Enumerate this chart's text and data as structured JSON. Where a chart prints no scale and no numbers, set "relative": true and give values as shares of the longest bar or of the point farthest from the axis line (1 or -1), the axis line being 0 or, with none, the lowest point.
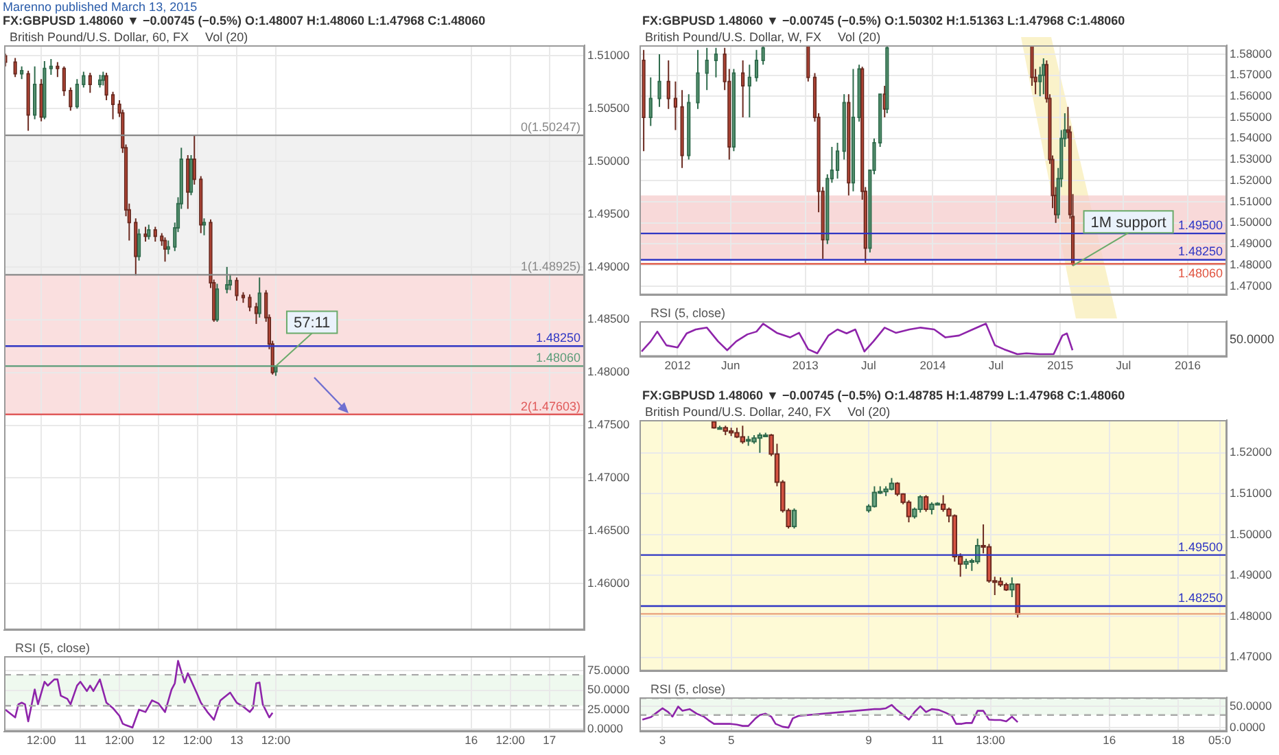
{
  "chart_data": [
    {
      "type": "candlestick",
      "subtitle": "Marenno published March 13, 2015",
      "title": "FX:GBPUSD 1.48060 ▼ −0.00745 (−0.5%) O:1.48007 H:1.48060 L:1.47968 C:1.48060",
      "annotations": [
        "British Pound/U.S. Dollar, 60, FX",
        "Vol (20)",
        {
          "text": "57:11",
          "x": "2015-03-13T12:00",
          "y": 1.4806
        }
      ],
      "x": [
        "2015-03-10T01:00",
        "2015-03-10T04:00",
        "2015-03-10T06:00",
        "2015-03-10T08:00",
        "2015-03-10T10:00",
        "2015-03-10T12:00",
        "2015-03-10T13:00",
        "2015-03-10T15:00",
        "2015-03-10T17:00",
        "2015-03-10T19:00",
        "2015-03-10T21:00",
        "2015-03-10T23:00",
        "2015-03-11T01:00",
        "2015-03-11T03:00",
        "2015-03-11T06:00",
        "2015-03-11T07:00",
        "2015-03-11T08:00",
        "2015-03-11T10:00",
        "2015-03-11T12:00",
        "2015-03-11T13:00",
        "2015-03-11T14:00",
        "2015-03-11T15:00",
        "2015-03-11T17:00",
        "2015-03-11T18:00",
        "2015-03-11T20:00",
        "2015-03-11T21:00",
        "2015-03-11T23:00",
        "2015-03-12T01:00",
        "2015-03-12T02:00",
        "2015-03-12T03:00",
        "2015-03-12T05:00",
        "2015-03-12T06:00",
        "2015-03-12T07:00",
        "2015-03-12T09:00",
        "2015-03-12T10:00",
        "2015-03-12T11:00",
        "2015-03-12T13:00",
        "2015-03-12T14:00",
        "2015-03-12T16:00",
        "2015-03-12T17:00",
        "2015-03-12T18:00",
        "2015-03-12T21:00",
        "2015-03-12T22:00",
        "2015-03-13T00:00",
        "2015-03-13T02:00",
        "2015-03-13T04:00",
        "2015-03-13T06:00",
        "2015-03-13T07:00",
        "2015-03-13T09:00",
        "2015-03-13T10:00",
        "2015-03-13T11:00",
        "2015-03-13T12:00"
      ],
      "ohlc": [
        [
          1.51,
          1.5102,
          1.509,
          1.5094
        ],
        [
          1.5094,
          1.5098,
          1.508,
          1.5083
        ],
        [
          1.5083,
          1.509,
          1.5078,
          1.5086
        ],
        [
          1.5083,
          1.5086,
          1.5029,
          1.5044
        ],
        [
          1.5044,
          1.509,
          1.504,
          1.5073
        ],
        [
          1.5073,
          1.5078,
          1.5038,
          1.5042
        ],
        [
          1.5042,
          1.5095,
          1.504,
          1.5088
        ],
        [
          1.5088,
          1.5097,
          1.5082,
          1.509
        ],
        [
          1.509,
          1.5094,
          1.508,
          1.5088
        ],
        [
          1.5088,
          1.509,
          1.5062,
          1.5067
        ],
        [
          1.5067,
          1.507,
          1.5048,
          1.5052
        ],
        [
          1.5052,
          1.5078,
          1.505,
          1.5073
        ],
        [
          1.5073,
          1.5085,
          1.507,
          1.5081
        ],
        [
          1.5081,
          1.5084,
          1.5065,
          1.5073
        ],
        [
          1.5073,
          1.5082,
          1.507,
          1.5077
        ],
        [
          1.5077,
          1.5085,
          1.5072,
          1.5081
        ],
        [
          1.5081,
          1.5084,
          1.5058,
          1.5063
        ],
        [
          1.5063,
          1.5066,
          1.504,
          1.5054
        ],
        [
          1.5054,
          1.5058,
          1.5042,
          1.5046
        ],
        [
          1.5046,
          1.5049,
          1.5008,
          1.5013
        ],
        [
          1.5013,
          1.5016,
          1.4948,
          1.4954
        ],
        [
          1.4954,
          1.496,
          1.4925,
          1.4942
        ],
        [
          1.4942,
          1.4946,
          1.4892,
          1.491
        ],
        [
          1.491,
          1.4936,
          1.4906,
          1.4931
        ],
        [
          1.4931,
          1.4938,
          1.4924,
          1.4929
        ],
        [
          1.4929,
          1.494,
          1.4926,
          1.4935
        ],
        [
          1.4935,
          1.4938,
          1.4924,
          1.4929
        ],
        [
          1.4929,
          1.4932,
          1.492,
          1.4925
        ],
        [
          1.4925,
          1.4928,
          1.4905,
          1.4917
        ],
        [
          1.4917,
          1.4925,
          1.4912,
          1.4919
        ],
        [
          1.4919,
          1.4942,
          1.4915,
          1.4937
        ],
        [
          1.4937,
          1.4966,
          1.4933,
          1.496
        ],
        [
          1.496,
          1.5013,
          1.4955,
          1.5002
        ],
        [
          1.5002,
          1.5006,
          1.4955,
          1.4971
        ],
        [
          1.4971,
          1.5006,
          1.4968,
          1.5002
        ],
        [
          1.5002,
          1.5025,
          1.4978,
          1.4983
        ],
        [
          1.4983,
          1.4986,
          1.4932,
          1.494
        ],
        [
          1.494,
          1.4946,
          1.493,
          1.4942
        ],
        [
          1.4942,
          1.4945,
          1.488,
          1.4885
        ],
        [
          1.4885,
          1.4888,
          1.4848,
          1.485
        ],
        [
          1.485,
          1.4884,
          1.4848,
          1.4879
        ],
        [
          1.4879,
          1.49,
          1.4875,
          1.4883
        ],
        [
          1.4883,
          1.4893,
          1.4878,
          1.4887
        ],
        [
          1.4887,
          1.489,
          1.4868,
          1.4873
        ],
        [
          1.4873,
          1.4876,
          1.4866,
          1.4871
        ],
        [
          1.4871,
          1.4874,
          1.4858,
          1.4862
        ],
        [
          1.4862,
          1.4866,
          1.4846,
          1.4856
        ],
        [
          1.4856,
          1.489,
          1.4852,
          1.4875
        ],
        [
          1.4875,
          1.4878,
          1.4848,
          1.4852
        ],
        [
          1.4852,
          1.4855,
          1.4822,
          1.4827
        ],
        [
          1.4827,
          1.483,
          1.4798,
          1.48
        ],
        [
          1.48007,
          1.4806,
          1.47968,
          1.4806
        ]
      ],
      "xlim": [
        "2015-03-10T00:36",
        "2015-03-17T10:48"
      ],
      "xticks": [
        {
          "value": "2015-03-10T12:00",
          "label": null
        },
        {
          "value": "2015-03-11",
          "label": null
        },
        {
          "value": "2015-03-11T12:00",
          "label": null
        },
        {
          "value": "2015-03-12",
          "label": null
        },
        {
          "value": "2015-03-12T12:00",
          "label": null
        },
        {
          "value": "2015-03-13",
          "label": null
        },
        {
          "value": "2015-03-13T12:00",
          "label": null
        },
        {
          "value": "2015-03-16",
          "label": null
        },
        {
          "value": "2015-03-16T12:00",
          "label": null
        },
        {
          "value": "2015-03-17",
          "label": null
        }
      ],
      "ylim": [
        1.4556,
        1.511
      ],
      "yticks": [
        {
          "value": 1.46,
          "label": "1.46000"
        },
        {
          "value": 1.465,
          "label": "1.46500"
        },
        {
          "value": 1.47,
          "label": "1.47000"
        },
        {
          "value": 1.475,
          "label": "1.47500"
        },
        {
          "value": 1.48,
          "label": "1.48000"
        },
        {
          "value": 1.485,
          "label": "1.48500"
        },
        {
          "value": 1.49,
          "label": "1.49000"
        },
        {
          "value": 1.495,
          "label": "1.49500"
        },
        {
          "value": 1.5,
          "label": "1.50000"
        },
        {
          "value": 1.505,
          "label": "1.50500"
        },
        {
          "value": 1.51,
          "label": "1.51000"
        }
      ],
      "ref_lines": [
        {
          "axis": "y",
          "value": 1.50247,
          "label": "0(1.50247)",
          "color": "#888888"
        },
        {
          "axis": "y",
          "value": 1.48925,
          "label": "1(1.48925)",
          "color": "#888888"
        },
        {
          "axis": "y",
          "value": 1.47603,
          "label": "2(1.47603)",
          "color": "#e05a5a"
        },
        {
          "axis": "y",
          "value": 1.4825,
          "label": "1.48250",
          "color": "#2f36c4"
        },
        {
          "axis": "y",
          "value": 1.4806,
          "label": "1.48060",
          "color": "#5a9c78"
        }
      ],
      "bands": [
        {
          "axis": "y",
          "from": 1.48925,
          "to": 1.50247,
          "color": "#ececec"
        },
        {
          "axis": "y",
          "from": 1.47603,
          "to": 1.48925,
          "color": "#f8d4d4"
        }
      ],
      "grid": true,
      "tick_labels": "y"
    },
    {
      "type": "line",
      "title": "RSI (5, close)",
      "series": [
        {
          "color": "#8e24aa",
          "x": [
            "2015-03-10T01:00",
            "2015-03-10T04:00",
            "2015-03-10T05:00",
            "2015-03-10T06:00",
            "2015-03-10T07:00",
            "2015-03-10T08:00",
            "2015-03-10T10:00",
            "2015-03-10T11:00",
            "2015-03-10T13:00",
            "2015-03-10T14:00",
            "2015-03-10T16:00",
            "2015-03-10T17:00",
            "2015-03-10T18:00",
            "2015-03-10T20:00",
            "2015-03-10T21:00",
            "2015-03-10T23:00",
            "2015-03-11T00:00",
            "2015-03-11T02:00",
            "2015-03-11T03:00",
            "2015-03-11T04:00",
            "2015-03-11T06:00",
            "2015-03-11T08:00",
            "2015-03-11T10:00",
            "2015-03-11T12:00",
            "2015-03-11T13:00",
            "2015-03-11T14:00",
            "2015-03-11T16:00",
            "2015-03-11T18:00",
            "2015-03-11T20:00",
            "2015-03-11T22:00",
            "2015-03-12T00:00",
            "2015-03-12T02:00",
            "2015-03-12T04:00",
            "2015-03-12T05:00",
            "2015-03-12T06:00",
            "2015-03-12T08:00",
            "2015-03-12T09:00",
            "2015-03-12T12:00",
            "2015-03-12T13:00",
            "2015-03-12T15:00",
            "2015-03-12T17:00",
            "2015-03-12T19:00",
            "2015-03-12T22:00",
            "2015-03-13T00:00",
            "2015-03-13T02:00",
            "2015-03-13T04:00",
            "2015-03-13T05:00",
            "2015-03-13T06:00",
            "2015-03-13T07:00",
            "2015-03-13T08:00",
            "2015-03-13T10:00",
            "2015-03-13T11:00"
          ],
          "values": [
            25,
            15,
            32,
            34,
            32,
            10,
            51,
            32,
            61,
            56,
            64,
            64,
            43,
            39,
            32,
            56,
            61,
            49,
            56,
            49,
            64,
            34,
            27,
            17,
            7,
            5,
            2,
            25,
            22,
            37,
            33,
            22,
            51,
            59,
            88,
            60,
            72,
            44,
            34,
            22,
            12,
            37,
            47,
            34,
            29,
            22,
            27,
            59,
            60,
            32,
            15,
            21
          ]
        }
      ],
      "xlim": [
        "2015-03-10T00:36",
        "2015-03-17T10:48"
      ],
      "xticks": [
        {
          "value": "2015-03-10T12:00",
          "label": "12:00"
        },
        {
          "value": "2015-03-11",
          "label": "11"
        },
        {
          "value": "2015-03-11T12:00",
          "label": "12:00"
        },
        {
          "value": "2015-03-12",
          "label": "12"
        },
        {
          "value": "2015-03-12T12:00",
          "label": "12:00"
        },
        {
          "value": "2015-03-13",
          "label": "13"
        },
        {
          "value": "2015-03-13T12:00",
          "label": "12:00"
        },
        {
          "value": "2015-03-16",
          "label": "16"
        },
        {
          "value": "2015-03-16T12:00",
          "label": "12:00"
        },
        {
          "value": "2015-03-17",
          "label": "17"
        }
      ],
      "ylim": [
        -3,
        94
      ],
      "yticks": [
        {
          "value": 0,
          "label": "0.0000"
        },
        {
          "value": 25,
          "label": "25.0000"
        },
        {
          "value": 50,
          "label": "50.0000"
        },
        {
          "value": 75,
          "label": "75.0000"
        }
      ],
      "ref_lines": [
        {
          "axis": "y",
          "value": 70,
          "color": "#aaaaaa",
          "line_style": "dashed"
        },
        {
          "axis": "y",
          "value": 30,
          "color": "#aaaaaa",
          "line_style": "dashed"
        }
      ],
      "bands": [
        {
          "axis": "y",
          "from": 30,
          "to": 70,
          "color": "#eaf7ea"
        }
      ],
      "grid": true,
      "marker": "none",
      "line_style": "solid"
    },
    {
      "type": "candlestick",
      "title": "FX:GBPUSD 1.48060 ▼ −0.00745 (−0.5%) O:1.50302 H:1.51363 L:1.47968 C:1.48060",
      "annotations": [
        "British Pound/U.S. Dollar, W, FX",
        "Vol (20)",
        {
          "text": "1M support",
          "x": "2015-02-06",
          "y": 1.47968
        }
      ],
      "x": [
        "2011-09-26",
        "2011-10-16",
        "2011-11-10",
        "2011-12-06",
        "2011-12-26",
        "2012-01-14",
        "2012-02-02",
        "2012-02-28",
        "2012-03-25",
        "2012-04-20",
        "2012-05-15",
        "2012-05-28",
        "2012-06-10",
        "2012-07-06",
        "2012-07-25",
        "2012-08-14",
        "2012-09-02",
        "2013-01-09",
        "2013-01-28",
        "2013-02-08",
        "2013-02-20",
        "2013-03-05",
        "2013-03-18",
        "2013-04-03",
        "2013-04-22",
        "2013-05-05",
        "2013-05-18",
        "2013-06-04",
        "2013-06-13",
        "2013-06-22",
        "2013-07-05",
        "2013-07-17",
        "2013-08-03",
        "2013-08-16",
        "2013-08-23",
        "2014-10-12",
        "2014-10-22",
        "2014-11-04",
        "2014-11-14",
        "2014-11-23",
        "2014-12-02",
        "2014-12-10",
        "2014-12-19",
        "2014-12-26",
        "2015-01-04",
        "2015-01-14",
        "2015-01-23",
        "2015-01-29",
        "2015-02-06"
      ],
      "ohlc": [
        [
          1.577,
          1.582,
          1.534,
          1.55
        ],
        [
          1.55,
          1.569,
          1.546,
          1.559
        ],
        [
          1.559,
          1.58,
          1.555,
          1.567
        ],
        [
          1.567,
          1.577,
          1.554,
          1.559
        ],
        [
          1.559,
          1.567,
          1.544,
          1.555
        ],
        [
          1.555,
          1.563,
          1.526,
          1.532
        ],
        [
          1.532,
          1.561,
          1.53,
          1.557
        ],
        [
          1.557,
          1.582,
          1.554,
          1.571
        ],
        [
          1.571,
          1.583,
          1.563,
          1.577
        ],
        [
          1.577,
          1.583,
          1.569,
          1.58
        ],
        [
          1.58,
          1.583,
          1.563,
          1.567
        ],
        [
          1.567,
          1.573,
          1.53,
          1.536
        ],
        [
          1.536,
          1.573,
          1.534,
          1.571
        ],
        [
          1.571,
          1.577,
          1.55,
          1.565
        ],
        [
          1.565,
          1.575,
          1.55,
          1.569
        ],
        [
          1.569,
          1.582,
          1.567,
          1.577
        ],
        [
          1.577,
          1.584,
          1.575,
          1.583
        ],
        [
          1.584,
          1.584,
          1.567,
          1.569
        ],
        [
          1.569,
          1.571,
          1.548,
          1.55
        ],
        [
          1.55,
          1.552,
          1.505,
          1.515
        ],
        [
          1.515,
          1.517,
          1.483,
          1.492
        ],
        [
          1.492,
          1.523,
          1.49,
          1.521
        ],
        [
          1.521,
          1.536,
          1.519,
          1.525
        ],
        [
          1.525,
          1.538,
          1.521,
          1.534
        ],
        [
          1.534,
          1.561,
          1.53,
          1.557
        ],
        [
          1.557,
          1.561,
          1.513,
          1.519
        ],
        [
          1.519,
          1.573,
          1.515,
          1.55
        ],
        [
          1.55,
          1.575,
          1.548,
          1.573
        ],
        [
          1.573,
          1.574,
          1.511,
          1.515
        ],
        [
          1.515,
          1.517,
          1.481,
          1.488
        ],
        [
          1.488,
          1.525,
          1.486,
          1.525
        ],
        [
          1.525,
          1.54,
          1.523,
          1.538
        ],
        [
          1.538,
          1.561,
          1.536,
          1.561
        ],
        [
          1.561,
          1.565,
          1.55,
          1.554
        ],
        [
          1.554,
          1.584,
          1.552,
          1.583
        ],
        [
          1.584,
          1.584,
          1.565,
          1.569
        ],
        [
          1.569,
          1.573,
          1.561,
          1.567
        ],
        [
          1.567,
          1.574,
          1.56,
          1.57
        ],
        [
          1.57,
          1.578,
          1.561,
          1.575
        ],
        [
          1.575,
          1.577,
          1.557,
          1.559
        ],
        [
          1.559,
          1.561,
          1.528,
          1.53
        ],
        [
          1.53,
          1.532,
          1.507,
          1.513
        ],
        [
          1.513,
          1.517,
          1.5,
          1.504
        ],
        [
          1.504,
          1.526,
          1.502,
          1.521
        ],
        [
          1.521,
          1.544,
          1.517,
          1.54
        ],
        [
          1.54,
          1.552,
          1.536,
          1.544
        ],
        [
          1.544,
          1.555,
          1.54,
          1.543
        ],
        [
          1.543,
          1.546,
          1.502,
          1.504
        ],
        [
          1.50302,
          1.51363,
          1.47968,
          1.4806
        ]
      ],
      "xlim": [
        "2011-09-14",
        "2016-04-22"
      ],
      "xticks": [
        {
          "value": "2012-01-01",
          "label": null
        },
        {
          "value": "2012-06-01",
          "label": null
        },
        {
          "value": "2013-01-01",
          "label": null
        },
        {
          "value": "2013-07-01",
          "label": null
        },
        {
          "value": "2014-01-01",
          "label": null
        },
        {
          "value": "2014-07-01",
          "label": null
        },
        {
          "value": "2015-01-01",
          "label": null
        },
        {
          "value": "2015-07-01",
          "label": null
        },
        {
          "value": "2016-01-01",
          "label": null
        }
      ],
      "ylim": [
        1.4658,
        1.5842
      ],
      "yticks": [
        {
          "value": 1.47,
          "label": "1.47000"
        },
        {
          "value": 1.48,
          "label": "1.48000"
        },
        {
          "value": 1.49,
          "label": "1.49000"
        },
        {
          "value": 1.5,
          "label": "1.50000"
        },
        {
          "value": 1.51,
          "label": "1.51000"
        },
        {
          "value": 1.52,
          "label": "1.52000"
        },
        {
          "value": 1.53,
          "label": "1.53000"
        },
        {
          "value": 1.54,
          "label": "1.54000"
        },
        {
          "value": 1.55,
          "label": "1.55000"
        },
        {
          "value": 1.56,
          "label": "1.56000"
        },
        {
          "value": 1.57,
          "label": "1.57000"
        },
        {
          "value": 1.58,
          "label": "1.58000"
        }
      ],
      "ref_lines": [
        {
          "axis": "y",
          "value": 1.495,
          "label": "1.49500",
          "color": "#2f36c4"
        },
        {
          "axis": "y",
          "value": 1.4825,
          "label": "1.48250",
          "color": "#2f36c4"
        },
        {
          "axis": "y",
          "value": 1.4806,
          "label": "1.48060",
          "color": "#e0533f"
        }
      ],
      "bands": [
        {
          "axis": "y",
          "from": 1.4825,
          "to": 1.513,
          "color": "#f6cccc"
        }
      ],
      "grid": true,
      "tick_labels": "y"
    },
    {
      "type": "line",
      "title": "RSI (5, close)",
      "annotations": [
        "50.0000"
      ],
      "relative": true,
      "series": [
        {
          "color": "#8e24aa",
          "x": [
            "2011-09-20",
            "2011-10-16",
            "2011-11-04",
            "2011-11-30",
            "2012-01-01",
            "2012-01-27",
            "2012-02-22",
            "2012-03-25",
            "2012-04-26",
            "2012-05-22",
            "2012-06-17",
            "2012-07-19",
            "2012-08-14",
            "2012-09-02",
            "2012-10-11",
            "2012-11-18",
            "2012-12-14",
            "2013-01-09",
            "2013-02-04",
            "2013-03-08",
            "2013-04-03",
            "2013-04-29",
            "2013-05-24",
            "2013-06-19",
            "2013-07-15",
            "2013-08-16",
            "2013-09-17",
            "2013-10-26",
            "2013-11-27",
            "2014-01-05",
            "2014-02-06",
            "2014-03-17",
            "2014-04-25",
            "2014-06-02",
            "2014-06-28",
            "2014-07-24",
            "2014-08-31",
            "2014-09-26",
            "2014-11-04",
            "2014-12-13",
            "2015-01-07",
            "2015-01-20",
            "2015-02-05"
          ],
          "values": [
            0.09,
            0.42,
            0.74,
            0.29,
            0.22,
            0.68,
            0.81,
            0.87,
            0.42,
            0.13,
            0.42,
            0.65,
            0.74,
            1,
            0.7,
            0.55,
            0.7,
            0.16,
            0.03,
            0.61,
            0.81,
            0.68,
            0.81,
            0.09,
            0.42,
            0.87,
            0.7,
            0.81,
            0.87,
            0.81,
            0.55,
            0.61,
            0.81,
            1,
            0.29,
            0.16,
            0,
            0.03,
            0,
            0,
            0.61,
            0.68,
            0.13
          ]
        }
      ],
      "xlim": [
        "2011-09-14",
        "2016-04-22"
      ],
      "xticks": [
        {
          "value": "2012-01-01",
          "label": "2012"
        },
        {
          "value": "2012-06-01",
          "label": "Jun"
        },
        {
          "value": "2013-01-01",
          "label": "2013"
        },
        {
          "value": "2013-07-01",
          "label": "Jul"
        },
        {
          "value": "2014-01-01",
          "label": "2014"
        },
        {
          "value": "2014-07-01",
          "label": "Jul"
        },
        {
          "value": "2015-01-01",
          "label": "2015"
        },
        {
          "value": "2015-07-01",
          "label": "Jul"
        },
        {
          "value": "2016-01-01",
          "label": "2016"
        }
      ],
      "grid": true,
      "marker": "none",
      "tick_labels": "x"
    },
    {
      "type": "candlestick",
      "title": "FX:GBPUSD 1.48060 ▼ −0.00745 (−0.5%) O:1.48785 H:1.48799 L:1.47968 C:1.48060",
      "annotations": [
        "British Pound/U.S. Dollar, 240, FX",
        "Vol (20)"
      ],
      "x": [
        "2015-03-04T12:00",
        "2015-03-04T16:00",
        "2015-03-04T20:00",
        "2015-03-05T00:00",
        "2015-03-05T04:00",
        "2015-03-05T08:00",
        "2015-03-05T12:00",
        "2015-03-05T16:00",
        "2015-03-05T20:00",
        "2015-03-06T00:00",
        "2015-03-06T04:00",
        "2015-03-06T08:00",
        "2015-03-06T12:00",
        "2015-03-06T16:00",
        "2015-03-06T20:00",
        "2015-03-09T00:00",
        "2015-03-09T04:00",
        "2015-03-09T08:00",
        "2015-03-09T12:00",
        "2015-03-09T16:00",
        "2015-03-09T20:00",
        "2015-03-10T00:00",
        "2015-03-10T04:00",
        "2015-03-10T08:00",
        "2015-03-10T12:00",
        "2015-03-10T16:00",
        "2015-03-10T20:00",
        "2015-03-11T00:00",
        "2015-03-11T04:00",
        "2015-03-11T08:00",
        "2015-03-11T12:00",
        "2015-03-11T16:00",
        "2015-03-11T20:00",
        "2015-03-12T00:00",
        "2015-03-12T04:00",
        "2015-03-12T08:00",
        "2015-03-12T12:00",
        "2015-03-12T16:00",
        "2015-03-12T20:00",
        "2015-03-13T00:00",
        "2015-03-13T04:00",
        "2015-03-13T08:00"
      ],
      "ohlc": [
        [
          1.5276,
          1.5278,
          1.5259,
          1.5261
        ],
        [
          1.5261,
          1.5266,
          1.5259,
          1.5261
        ],
        [
          1.5261,
          1.5266,
          1.5243,
          1.5253
        ],
        [
          1.5253,
          1.5261,
          1.5241,
          1.5249
        ],
        [
          1.5249,
          1.5261,
          1.5236,
          1.5239
        ],
        [
          1.5239,
          1.5266,
          1.5222,
          1.5227
        ],
        [
          1.5232,
          1.5241,
          1.5217,
          1.5232
        ],
        [
          1.5227,
          1.5243,
          1.5222,
          1.5236
        ],
        [
          1.5236,
          1.5249,
          1.52,
          1.5243
        ],
        [
          1.5243,
          1.5249,
          1.5239,
          1.5243
        ],
        [
          1.5243,
          1.5246,
          1.5192,
          1.5197
        ],
        [
          1.5197,
          1.5222,
          1.5118,
          1.5128
        ],
        [
          1.5128,
          1.5133,
          1.5054,
          1.5059
        ],
        [
          1.5059,
          1.5064,
          1.5015,
          1.502
        ],
        [
          1.502,
          1.5064,
          1.5015,
          1.5059
        ],
        [
          1.5059,
          1.5074,
          1.5054,
          1.5069
        ],
        [
          1.5069,
          1.5118,
          1.5066,
          1.5103
        ],
        [
          1.5103,
          1.5118,
          1.5099,
          1.5105
        ],
        [
          1.5105,
          1.5118,
          1.5094,
          1.5111
        ],
        [
          1.5111,
          1.5138,
          1.5108,
          1.5125
        ],
        [
          1.5125,
          1.5128,
          1.5094,
          1.5099
        ],
        [
          1.5099,
          1.5101,
          1.5074,
          1.5079
        ],
        [
          1.5079,
          1.5084,
          1.503,
          1.5044
        ],
        [
          1.5044,
          1.5066,
          1.5039,
          1.5062
        ],
        [
          1.5062,
          1.5096,
          1.5054,
          1.5092
        ],
        [
          1.5092,
          1.5096,
          1.5056,
          1.5062
        ],
        [
          1.5062,
          1.5079,
          1.5049,
          1.5074
        ],
        [
          1.5074,
          1.5079,
          1.5072,
          1.5076
        ],
        [
          1.5074,
          1.5096,
          1.5056,
          1.5062
        ],
        [
          1.5062,
          1.5066,
          1.503,
          1.5046
        ],
        [
          1.5046,
          1.5049,
          1.4934,
          1.4946
        ],
        [
          1.4946,
          1.4954,
          1.4897,
          1.4928
        ],
        [
          1.4928,
          1.4941,
          1.4916,
          1.4934
        ],
        [
          1.4934,
          1.4941,
          1.4911,
          1.4936
        ],
        [
          1.4934,
          1.499,
          1.4928,
          1.4973
        ],
        [
          1.4973,
          1.5025,
          1.4954,
          1.497
        ],
        [
          1.497,
          1.4977,
          1.4882,
          1.4887
        ],
        [
          1.4887,
          1.4897,
          1.4852,
          1.4885
        ],
        [
          1.4885,
          1.4895,
          1.4872,
          1.4877
        ],
        [
          1.4877,
          1.4882,
          1.4862,
          1.4865
        ],
        [
          1.4865,
          1.4895,
          1.4847,
          1.4879
        ],
        [
          1.48785,
          1.48799,
          1.47968,
          1.4806
        ]
      ],
      "xlim": [
        "2015-03-02T08:00",
        "2015-03-19T10:00"
      ],
      "xticks": [
        {
          "value": "2015-03-03",
          "label": null
        },
        {
          "value": "2015-03-05",
          "label": null
        },
        {
          "value": "2015-03-09",
          "label": null
        },
        {
          "value": "2015-03-11",
          "label": null
        },
        {
          "value": "2015-03-12T13:00",
          "label": null
        },
        {
          "value": "2015-03-16",
          "label": null
        },
        {
          "value": "2015-03-18",
          "label": null
        },
        {
          "value": "2015-03-19T05:00",
          "label": null
        }
      ],
      "ylim": [
        1.4666,
        1.528
      ],
      "yticks": [
        {
          "value": 1.47,
          "label": "1.47000"
        },
        {
          "value": 1.48,
          "label": "1.48000"
        },
        {
          "value": 1.49,
          "label": "1.49000"
        },
        {
          "value": 1.5,
          "label": "1.50000"
        },
        {
          "value": 1.51,
          "label": "1.51000"
        },
        {
          "value": 1.52,
          "label": "1.52000"
        }
      ],
      "ref_lines": [
        {
          "axis": "y",
          "value": 1.495,
          "label": "1.49500",
          "color": "#2f36c4"
        },
        {
          "axis": "y",
          "value": 1.4825,
          "label": "1.48250",
          "color": "#2f36c4"
        },
        {
          "axis": "y",
          "value": 1.4806,
          "color": "#e8a07c"
        }
      ],
      "bands": [
        {
          "axis": "y",
          "from": 1.4666,
          "to": 1.528,
          "color": "#fdf8c8"
        }
      ],
      "grid": true,
      "tick_labels": "y"
    },
    {
      "type": "line",
      "title": "RSI (5, close)",
      "series": [
        {
          "color": "#8e24aa",
          "x": [
            "2015-03-02T10:00",
            "2015-03-02T16:00",
            "2015-03-02T19:00",
            "2015-03-03T00:00",
            "2015-03-03T04:00",
            "2015-03-03T07:00",
            "2015-03-03T11:00",
            "2015-03-03T14:00",
            "2015-03-03T19:00",
            "2015-03-04T00:00",
            "2015-03-04T05:00",
            "2015-03-04T08:00",
            "2015-03-04T12:00",
            "2015-03-04T18:00",
            "2015-03-04T23:00",
            "2015-03-05T04:00",
            "2015-03-05T08:00",
            "2015-03-05T12:00",
            "2015-03-05T17:00",
            "2015-03-05T20:00",
            "2015-03-06T00:00",
            "2015-03-06T04:00",
            "2015-03-06T07:00",
            "2015-03-06T12:00",
            "2015-03-06T16:00",
            "2015-03-06T19:00",
            "2015-03-06T23:00",
            "2015-03-09T04:00",
            "2015-03-09T08:00",
            "2015-03-09T12:00",
            "2015-03-09T16:00",
            "2015-03-09T19:00",
            "2015-03-09T23:00",
            "2015-03-10T04:00",
            "2015-03-10T08:00",
            "2015-03-10T12:00",
            "2015-03-10T16:00",
            "2015-03-10T20:00",
            "2015-03-11T01:00",
            "2015-03-11T06:00",
            "2015-03-11T10:00",
            "2015-03-11T13:00",
            "2015-03-11T17:00",
            "2015-03-11T20:00",
            "2015-03-12T00:00",
            "2015-03-12T04:00",
            "2015-03-12T08:00",
            "2015-03-12T12:00",
            "2015-03-12T16:00",
            "2015-03-12T20:00",
            "2015-03-13T00:00",
            "2015-03-13T04:00",
            "2015-03-13T08:00"
          ],
          "values": [
            19,
            25,
            33,
            46,
            37,
            26,
            50,
            40,
            44,
            33,
            26,
            18,
            9,
            9,
            9,
            7,
            4,
            4,
            22,
            30,
            33,
            26,
            9,
            2,
            0,
            22,
            28,
            44,
            44,
            46,
            54,
            44,
            33,
            19,
            37,
            51,
            37,
            44,
            42,
            35,
            28,
            9,
            9,
            11,
            11,
            40,
            40,
            19,
            18,
            18,
            15,
            26,
            13
          ]
        }
      ],
      "xlim": [
        "2015-03-02T08:00",
        "2015-03-19T10:00"
      ],
      "xticks": [
        {
          "value": "2015-03-03",
          "label": "3"
        },
        {
          "value": "2015-03-05",
          "label": "5"
        },
        {
          "value": "2015-03-09",
          "label": "9"
        },
        {
          "value": "2015-03-11",
          "label": "11"
        },
        {
          "value": "2015-03-12T13:00",
          "label": "13:00"
        },
        {
          "value": "2015-03-16",
          "label": "16"
        },
        {
          "value": "2015-03-18",
          "label": "18"
        },
        {
          "value": "2015-03-19T05:00",
          "label": "05:0"
        }
      ],
      "ylim": [
        -9,
        72
      ],
      "yticks": [
        {
          "value": 0,
          "label": "0.0000"
        },
        {
          "value": 50,
          "label": "50.0000"
        }
      ],
      "ref_lines": [
        {
          "axis": "y",
          "value": 70,
          "color": "#aaaaaa",
          "line_style": "dashed"
        },
        {
          "axis": "y",
          "value": 30,
          "color": "#aaaaaa",
          "line_style": "dashed"
        }
      ],
      "bands": [
        {
          "axis": "y",
          "from": 30,
          "to": 70,
          "color": "#eaf7ea"
        }
      ],
      "grid": true,
      "marker": "none"
    }
  ]
}
